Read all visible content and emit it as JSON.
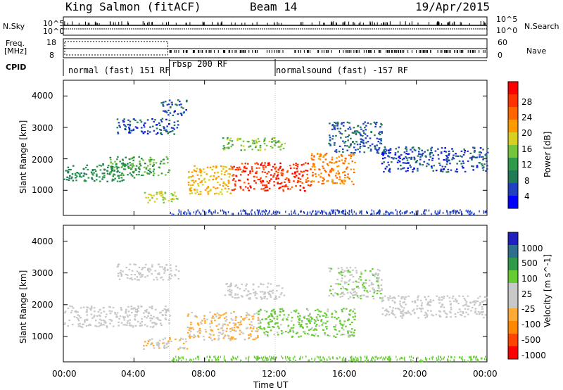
{
  "header": {
    "station": "King Salmon (fitACF)",
    "beam": "Beam 14",
    "date": "19/Apr/2015"
  },
  "strip": {
    "nsky_label": "N.Sky",
    "nsky_top": "10^5",
    "nsky_bottom": "10^0",
    "nsearch_label": "N.Search",
    "nsearch_top": "10^5",
    "nsearch_bottom": "10^0",
    "freq_label": "Freq.",
    "freq_unit": "[MHz]",
    "freq_top": "18",
    "freq_bottom": "8",
    "nave_label": "Nave",
    "nave_top": "60",
    "nave_bottom": "0",
    "cpid_label": "CPID"
  },
  "modes": [
    {
      "start": 0.0,
      "end": 6.0,
      "label": "normal (fast) 151 RF"
    },
    {
      "start": 6.0,
      "end": 12.0,
      "label": "rbsp 200 RF"
    },
    {
      "start": 12.0,
      "end": 24.0,
      "label": "normalsound (fast) -157 RF"
    }
  ],
  "colors": {
    "power": [
      "#0000ff",
      "#2040c0",
      "#207a55",
      "#2e9a4a",
      "#74c43c",
      "#d8d020",
      "#ff9900",
      "#ff6600",
      "#ff3300",
      "#ff0000"
    ],
    "velocity": [
      "#ff0000",
      "#ff4400",
      "#ff8800",
      "#ffaa33",
      "#c8c8c8",
      "#c8c8c8",
      "#66cc33",
      "#2e9a4a",
      "#2e6f8f",
      "#2020c0"
    ]
  },
  "chart_data": [
    {
      "type": "heatmap",
      "title": "Power",
      "xlabel": "Time UT",
      "ylabel": "Slant Range [km]",
      "x_ticks": [
        "00:00",
        "04:00",
        "08:00",
        "12:00",
        "16:00",
        "20:00",
        "00:00"
      ],
      "x_range_hours": [
        0,
        24
      ],
      "y_ticks": [
        "1000",
        "2000",
        "3000",
        "4000"
      ],
      "y_range_km": [
        200,
        4500
      ],
      "colorbar_label": "Power [dB]",
      "colorbar_ticks": [
        "4",
        "8",
        "12",
        "16",
        "20",
        "24",
        "28"
      ],
      "colorbar_range": [
        0,
        30
      ],
      "regions": [
        {
          "t0": 0.0,
          "t1": 4.0,
          "r0": 1300,
          "r1": 1900,
          "v": 9
        },
        {
          "t0": 2.5,
          "t1": 6.0,
          "r0": 1500,
          "r1": 2100,
          "v": 11
        },
        {
          "t0": 3.0,
          "t1": 6.5,
          "r0": 2800,
          "r1": 3300,
          "v": 5
        },
        {
          "t0": 5.5,
          "t1": 7.0,
          "r0": 3400,
          "r1": 3900,
          "v": 5
        },
        {
          "t0": 4.5,
          "t1": 6.5,
          "r0": 600,
          "r1": 1000,
          "v": 15
        },
        {
          "t0": 7.0,
          "t1": 9.5,
          "r0": 900,
          "r1": 1800,
          "v": 18
        },
        {
          "t0": 9.5,
          "t1": 14.0,
          "r0": 1000,
          "r1": 1900,
          "v": 26
        },
        {
          "t0": 14.0,
          "t1": 16.5,
          "r0": 1200,
          "r1": 2200,
          "v": 21
        },
        {
          "t0": 9.0,
          "t1": 12.5,
          "r0": 2300,
          "r1": 2700,
          "v": 13
        },
        {
          "t0": 15.0,
          "t1": 18.0,
          "r0": 2200,
          "r1": 3200,
          "v": 6
        },
        {
          "t0": 18.0,
          "t1": 24.0,
          "r0": 1600,
          "r1": 2400,
          "v": 5
        }
      ]
    },
    {
      "type": "heatmap",
      "title": "Velocity",
      "xlabel": "Time UT",
      "ylabel": "Slant Range [km]",
      "x_ticks": [
        "00:00",
        "04:00",
        "08:00",
        "12:00",
        "16:00",
        "20:00",
        "00:00"
      ],
      "x_range_hours": [
        0,
        24
      ],
      "y_ticks": [
        "1000",
        "2000",
        "3000",
        "4000"
      ],
      "y_range_km": [
        200,
        4500
      ],
      "colorbar_label": "Velocity [m s^-1]",
      "colorbar_ticks": [
        "-1000",
        "-500",
        "-100",
        "-25",
        "25",
        "100",
        "500",
        "1000"
      ],
      "colorbar_range": [
        -1200,
        1200
      ],
      "regions": [
        {
          "t0": 0.0,
          "t1": 6.0,
          "r0": 1300,
          "r1": 2000,
          "v": 0
        },
        {
          "t0": 3.0,
          "t1": 6.5,
          "r0": 2800,
          "r1": 3300,
          "v": 0
        },
        {
          "t0": 4.5,
          "t1": 7.0,
          "r0": 600,
          "r1": 1000,
          "v": -200
        },
        {
          "t0": 7.0,
          "t1": 11.0,
          "r0": 900,
          "r1": 1800,
          "v": -250
        },
        {
          "t0": 11.0,
          "t1": 16.5,
          "r0": 1000,
          "r1": 1900,
          "v": 300
        },
        {
          "t0": 9.0,
          "t1": 12.5,
          "r0": 2200,
          "r1": 2700,
          "v": 0
        },
        {
          "t0": 15.0,
          "t1": 18.0,
          "r0": 2200,
          "r1": 3200,
          "v": 200
        },
        {
          "t0": 18.0,
          "t1": 24.0,
          "r0": 1600,
          "r1": 2300,
          "v": 0
        }
      ]
    }
  ]
}
